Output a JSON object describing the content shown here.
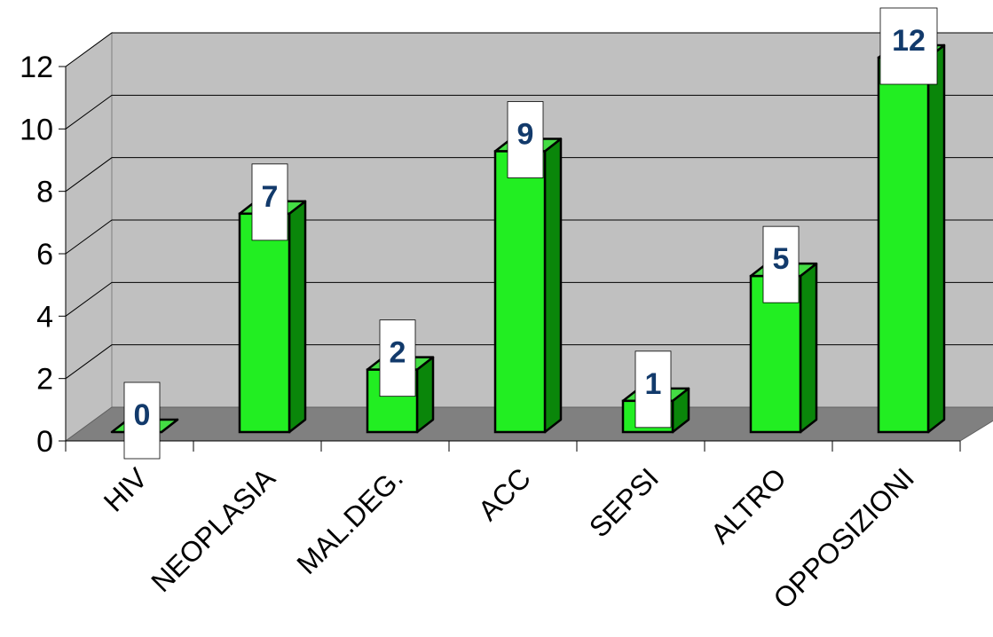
{
  "chart_data": {
    "type": "bar",
    "style": "3d",
    "categories": [
      "HIV",
      "NEOPLASIA",
      "MAL.DEG.",
      "ACC",
      "SEPSI",
      "ALTRO",
      "OPPOSIZIONI"
    ],
    "values": [
      0,
      7,
      2,
      9,
      1,
      5,
      12
    ],
    "data_labels": [
      "0",
      "7",
      "2",
      "9",
      "1",
      "5",
      "12"
    ],
    "y_ticks": [
      "0",
      "2",
      "4",
      "6",
      "8",
      "10",
      "12"
    ],
    "ylim": [
      0,
      12
    ],
    "grid": true,
    "legend": "none",
    "colors": {
      "bar_front": "#22ee22",
      "bar_side": "#0a860a",
      "bar_top": "#44dd44",
      "wall": "#c0c0c0",
      "floor": "#808080",
      "label_text": "#123a6b"
    }
  }
}
